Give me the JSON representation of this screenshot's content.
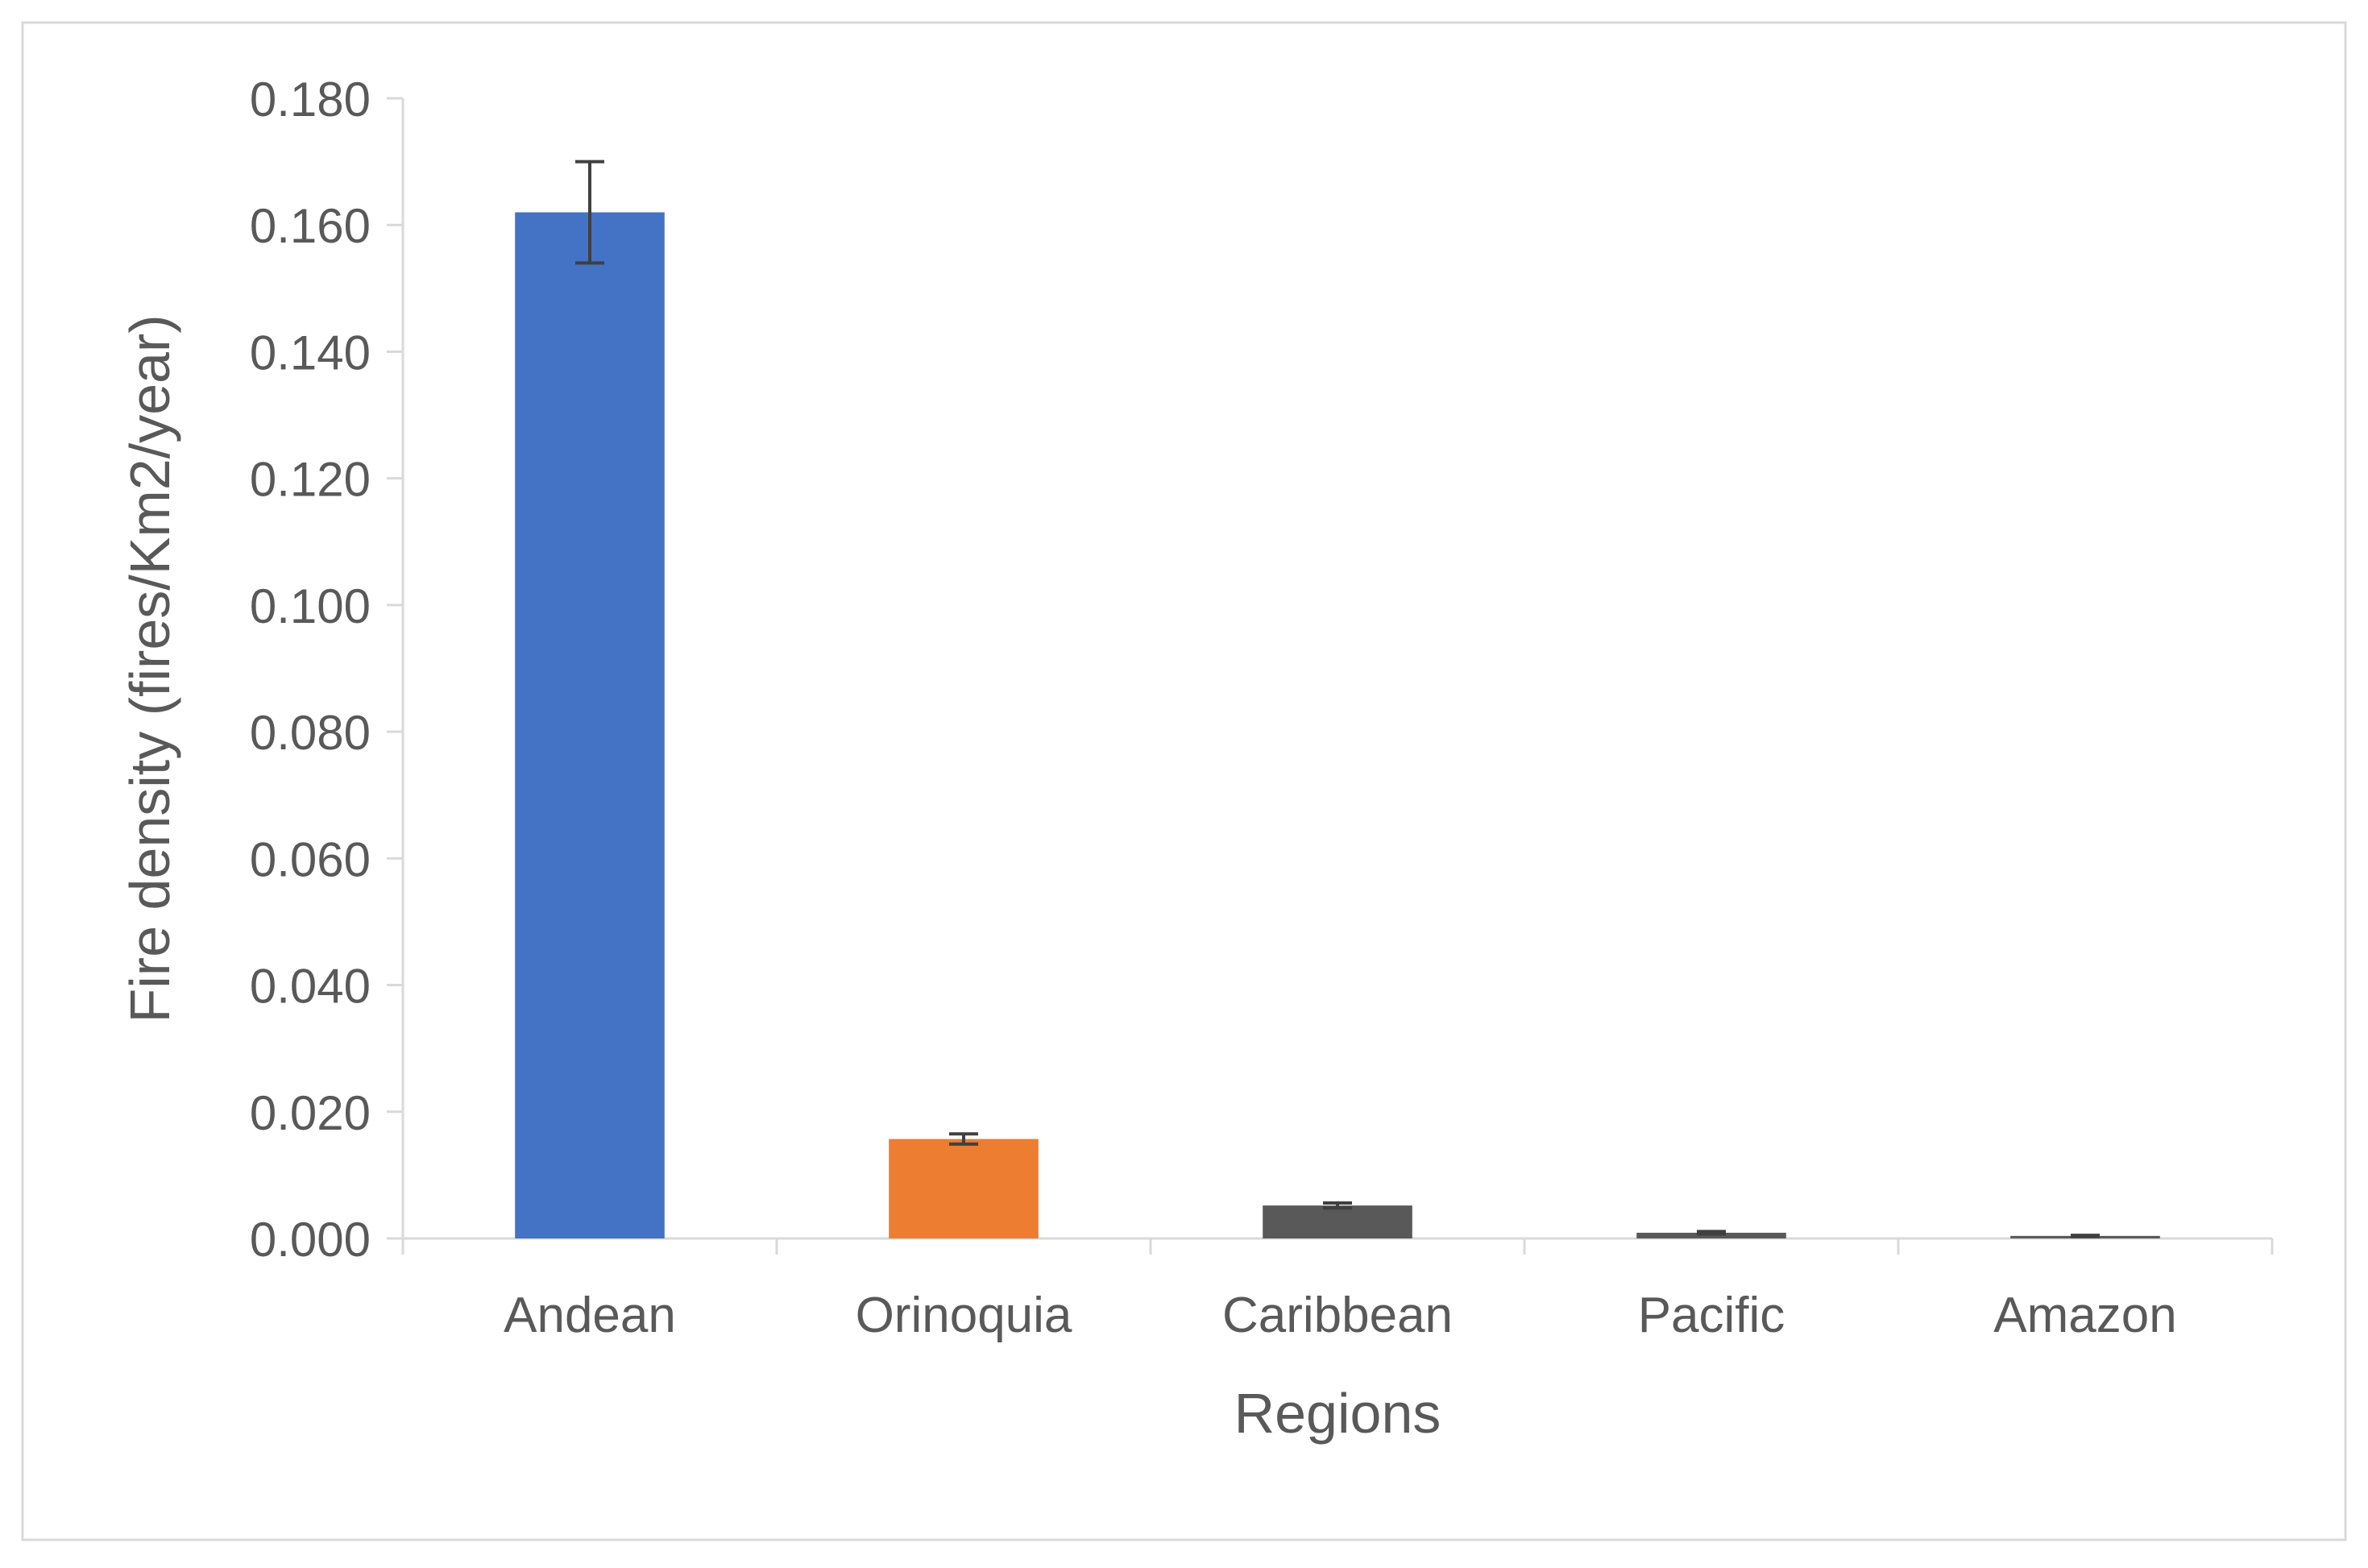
{
  "chart_data": {
    "type": "bar",
    "title": "",
    "xlabel": "Regions",
    "ylabel": "Fire density  (fires/Km2/year)",
    "categories": [
      "Andean",
      "Orinoquia",
      "Caribbean",
      "Pacific",
      "Amazon"
    ],
    "values": [
      0.162,
      0.0157,
      0.0052,
      0.0009,
      0.0004
    ],
    "error": [
      0.008,
      0.0008,
      0.0004,
      0.0002,
      0.0001
    ],
    "colors": [
      "#4472C4",
      "#ED7D31",
      "#595959",
      "#595959",
      "#595959"
    ],
    "ylim": [
      0,
      0.18
    ],
    "yticks": [
      0.0,
      0.02,
      0.04,
      0.06,
      0.08,
      0.1,
      0.12,
      0.14,
      0.16,
      0.18
    ],
    "ytick_labels": [
      "0.000",
      "0.020",
      "0.040",
      "0.060",
      "0.080",
      "0.100",
      "0.120",
      "0.140",
      "0.160",
      "0.180"
    ],
    "grid": false,
    "legend": "none"
  }
}
